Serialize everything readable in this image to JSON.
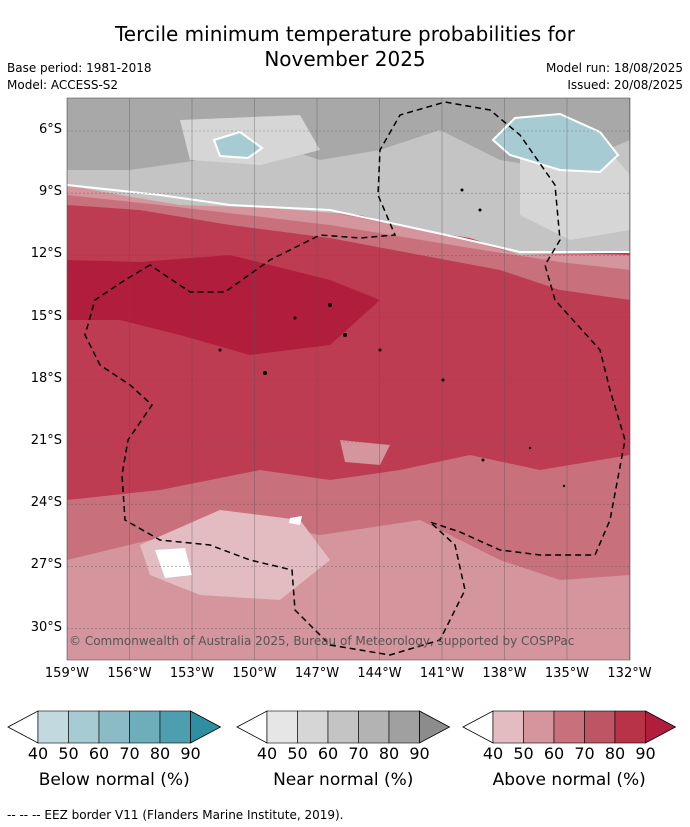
{
  "title_line1": "Tercile minimum temperature probabilities for",
  "title_line2": "November 2025",
  "base_period": "Base period: 1981-2018",
  "model": "Model: ACCESS-S2",
  "model_run": "Model run: 18/08/2025",
  "issued": "Issued: 20/08/2025",
  "lat_labels": [
    "6°S",
    "9°S",
    "12°S",
    "15°S",
    "18°S",
    "21°S",
    "24°S",
    "27°S",
    "30°S"
  ],
  "lon_labels": [
    "159°W",
    "156°W",
    "153°W",
    "150°W",
    "147°W",
    "144°W",
    "141°W",
    "138°W",
    "135°W",
    "132°W"
  ],
  "copyright": "© Commonwealth of Australia 2025, Bureau of Meteorology, supported by COSPPac",
  "colorbars": [
    {
      "label": "Below normal (%)",
      "ticks": [
        "40",
        "50",
        "60",
        "70",
        "80",
        "90"
      ],
      "colors": [
        "#c2d9df",
        "#a7cbd3",
        "#8bbcc6",
        "#6eadba",
        "#4d9eae",
        "#2f8fa2"
      ]
    },
    {
      "label": "Near normal (%)",
      "ticks": [
        "40",
        "50",
        "60",
        "70",
        "80",
        "90"
      ],
      "colors": [
        "#e6e6e6",
        "#d6d6d6",
        "#c4c4c4",
        "#b3b3b3",
        "#a0a0a0",
        "#8c8c8c"
      ]
    },
    {
      "label": "Above normal (%)",
      "ticks": [
        "40",
        "50",
        "60",
        "70",
        "80",
        "90"
      ],
      "colors": [
        "#e3bcc1",
        "#d4959c",
        "#c8717d",
        "#bd5564",
        "#b83248",
        "#b11d3c"
      ]
    }
  ],
  "footer": "--  --  -- EEZ border V11 (Flanders Marine Institute, 2019)."
}
